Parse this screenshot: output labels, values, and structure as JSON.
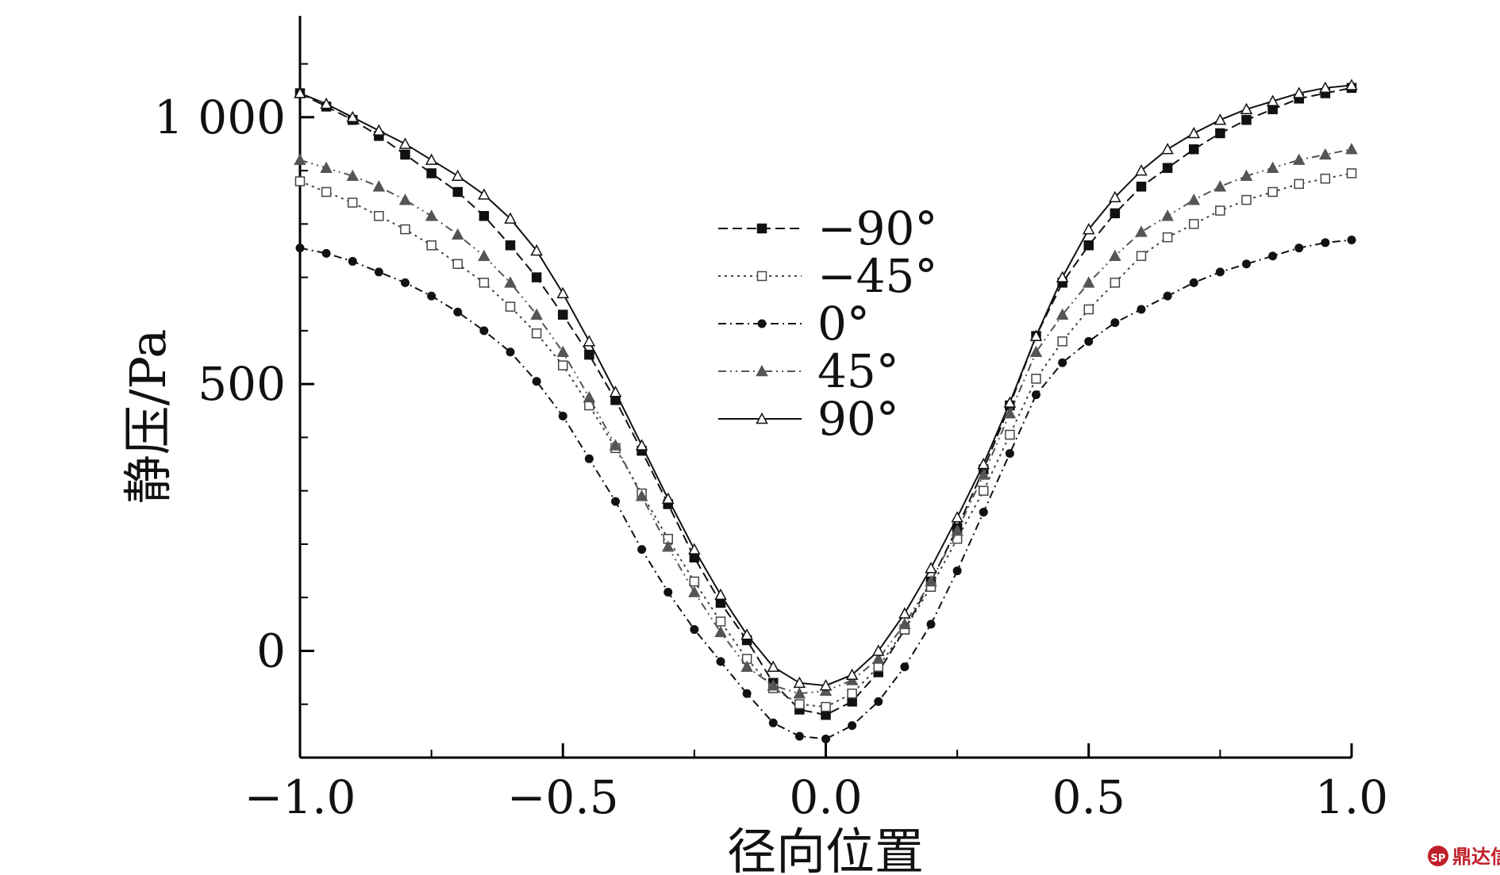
{
  "chart_data": {
    "type": "line",
    "title": "",
    "xlabel": "径向位置",
    "ylabel": "静压/Pa",
    "xlim": [
      -1.0,
      1.0
    ],
    "ylim": [
      -200,
      1200
    ],
    "grid": false,
    "legend": "center",
    "x_ticks": [
      -1.0,
      -0.5,
      0.0,
      0.5,
      1.0
    ],
    "x_tick_labels": [
      "−1.0",
      "−0.5",
      "0.0",
      "0.5",
      "1.0"
    ],
    "y_ticks": [
      0,
      500,
      1000
    ],
    "y_tick_labels": [
      "0",
      "500",
      "1 000"
    ],
    "series": [
      {
        "name": "−90°",
        "marker": "square-filled",
        "dash": "12,6",
        "color": "#111111",
        "x": [
          -1.0,
          -0.95,
          -0.9,
          -0.85,
          -0.8,
          -0.75,
          -0.7,
          -0.65,
          -0.6,
          -0.55,
          -0.5,
          -0.45,
          -0.4,
          -0.35,
          -0.3,
          -0.25,
          -0.2,
          -0.15,
          -0.1,
          -0.05,
          0.0,
          0.05,
          0.1,
          0.15,
          0.2,
          0.25,
          0.3,
          0.35,
          0.4,
          0.45,
          0.5,
          0.55,
          0.6,
          0.65,
          0.7,
          0.75,
          0.8,
          0.85,
          0.9,
          0.95,
          1.0
        ],
        "values": [
          1045,
          1020,
          995,
          965,
          930,
          895,
          860,
          815,
          760,
          700,
          630,
          555,
          470,
          375,
          275,
          175,
          90,
          20,
          -60,
          -110,
          -120,
          -95,
          -40,
          40,
          130,
          230,
          340,
          460,
          590,
          690,
          760,
          820,
          870,
          905,
          940,
          970,
          995,
          1015,
          1035,
          1045,
          1055
        ]
      },
      {
        "name": "−45°",
        "marker": "square-open",
        "dash": "3,5",
        "color": "#444444",
        "x": [
          -1.0,
          -0.95,
          -0.9,
          -0.85,
          -0.8,
          -0.75,
          -0.7,
          -0.65,
          -0.6,
          -0.55,
          -0.5,
          -0.45,
          -0.4,
          -0.35,
          -0.3,
          -0.25,
          -0.2,
          -0.15,
          -0.1,
          -0.05,
          0.0,
          0.05,
          0.1,
          0.15,
          0.2,
          0.25,
          0.3,
          0.35,
          0.4,
          0.45,
          0.5,
          0.55,
          0.6,
          0.65,
          0.7,
          0.75,
          0.8,
          0.85,
          0.9,
          0.95,
          1.0
        ],
        "values": [
          880,
          860,
          840,
          815,
          790,
          760,
          725,
          690,
          645,
          595,
          535,
          460,
          380,
          295,
          210,
          130,
          55,
          -15,
          -70,
          -100,
          -105,
          -80,
          -30,
          40,
          120,
          210,
          300,
          405,
          510,
          580,
          640,
          690,
          740,
          775,
          800,
          825,
          845,
          860,
          875,
          885,
          895
        ]
      },
      {
        "name": "0°",
        "marker": "circle-filled",
        "dash": "10,5,2,5",
        "color": "#111111",
        "x": [
          -1.0,
          -0.95,
          -0.9,
          -0.85,
          -0.8,
          -0.75,
          -0.7,
          -0.65,
          -0.6,
          -0.55,
          -0.5,
          -0.45,
          -0.4,
          -0.35,
          -0.3,
          -0.25,
          -0.2,
          -0.15,
          -0.1,
          -0.05,
          0.0,
          0.05,
          0.1,
          0.15,
          0.2,
          0.25,
          0.3,
          0.35,
          0.4,
          0.45,
          0.5,
          0.55,
          0.6,
          0.65,
          0.7,
          0.75,
          0.8,
          0.85,
          0.9,
          0.95,
          1.0
        ],
        "values": [
          755,
          745,
          730,
          710,
          690,
          665,
          635,
          600,
          560,
          505,
          440,
          360,
          280,
          190,
          110,
          40,
          -20,
          -80,
          -135,
          -160,
          -165,
          -140,
          -95,
          -30,
          50,
          150,
          260,
          370,
          480,
          540,
          580,
          615,
          640,
          665,
          690,
          710,
          725,
          740,
          755,
          765,
          770
        ]
      },
      {
        "name": "45°",
        "marker": "triangle-filled",
        "dash": "10,5,2,5,2,5",
        "color": "#555555",
        "x": [
          -1.0,
          -0.95,
          -0.9,
          -0.85,
          -0.8,
          -0.75,
          -0.7,
          -0.65,
          -0.6,
          -0.55,
          -0.5,
          -0.45,
          -0.4,
          -0.35,
          -0.3,
          -0.25,
          -0.2,
          -0.15,
          -0.1,
          -0.05,
          0.0,
          0.05,
          0.1,
          0.15,
          0.2,
          0.25,
          0.3,
          0.35,
          0.4,
          0.45,
          0.5,
          0.55,
          0.6,
          0.65,
          0.7,
          0.75,
          0.8,
          0.85,
          0.9,
          0.95,
          1.0
        ],
        "values": [
          920,
          905,
          890,
          870,
          845,
          815,
          780,
          740,
          690,
          630,
          560,
          475,
          385,
          290,
          195,
          110,
          35,
          -30,
          -65,
          -80,
          -75,
          -55,
          -15,
          50,
          130,
          225,
          330,
          445,
          560,
          630,
          690,
          740,
          785,
          815,
          845,
          870,
          890,
          905,
          920,
          930,
          940
        ]
      },
      {
        "name": "90°",
        "marker": "triangle-open",
        "dash": "",
        "color": "#111111",
        "x": [
          -1.0,
          -0.95,
          -0.9,
          -0.85,
          -0.8,
          -0.75,
          -0.7,
          -0.65,
          -0.6,
          -0.55,
          -0.5,
          -0.45,
          -0.4,
          -0.35,
          -0.3,
          -0.25,
          -0.2,
          -0.15,
          -0.1,
          -0.05,
          0.0,
          0.05,
          0.1,
          0.15,
          0.2,
          0.25,
          0.3,
          0.35,
          0.4,
          0.45,
          0.5,
          0.55,
          0.6,
          0.65,
          0.7,
          0.75,
          0.8,
          0.85,
          0.9,
          0.95,
          1.0
        ],
        "values": [
          1045,
          1025,
          1000,
          975,
          950,
          920,
          890,
          855,
          810,
          750,
          670,
          580,
          485,
          385,
          285,
          190,
          105,
          30,
          -30,
          -60,
          -65,
          -45,
          0,
          70,
          155,
          250,
          350,
          465,
          590,
          700,
          790,
          850,
          900,
          940,
          970,
          995,
          1015,
          1030,
          1045,
          1055,
          1060
        ]
      }
    ]
  },
  "watermark": {
    "text": "鼎达信",
    "logo_mark": "SP"
  }
}
